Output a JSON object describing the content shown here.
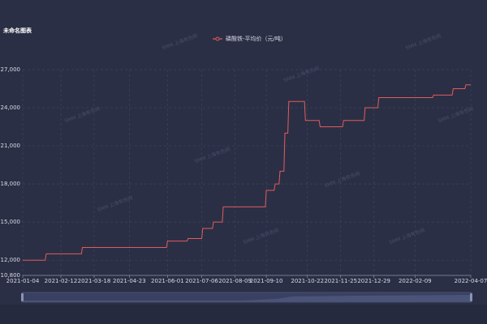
{
  "chart_data": {
    "type": "line",
    "title": "未命名图表",
    "watermark": "SMM 上海有色网",
    "x": [
      "2021-01-04",
      "2021-01-27",
      "2021-01-28",
      "2021-03-05",
      "2021-03-06",
      "2021-05-31",
      "2021-06-01",
      "2021-06-21",
      "2021-06-22",
      "2021-07-06",
      "2021-07-07",
      "2021-07-17",
      "2021-07-18",
      "2021-07-27",
      "2021-07-28",
      "2021-09-09",
      "2021-09-10",
      "2021-09-18",
      "2021-09-19",
      "2021-09-23",
      "2021-09-24",
      "2021-09-28",
      "2021-09-29",
      "2021-10-02",
      "2021-10-03",
      "2021-10-19",
      "2021-10-20",
      "2021-11-03",
      "2021-11-04",
      "2021-11-27",
      "2021-11-28",
      "2021-12-19",
      "2021-12-20",
      "2022-01-02",
      "2022-01-03",
      "2022-02-27",
      "2022-02-28",
      "2022-03-19",
      "2022-03-20",
      "2022-04-01",
      "2022-04-02",
      "2022-04-07"
    ],
    "series": [
      {
        "name": "磷酸铁-平均价（元/吨）",
        "color": "#e05c5c",
        "values": [
          12000,
          12000,
          12500,
          12500,
          13000,
          13000,
          13500,
          13500,
          13700,
          13700,
          14500,
          14500,
          15000,
          15000,
          16200,
          16200,
          17500,
          17500,
          18000,
          18000,
          19000,
          19000,
          22000,
          22000,
          24500,
          24500,
          23000,
          23000,
          22500,
          22500,
          23000,
          23000,
          24000,
          24000,
          24800,
          24800,
          25000,
          25000,
          25500,
          25500,
          25800,
          25800
        ]
      }
    ],
    "xlim": [
      "2021-01-04",
      "2022-04-07"
    ],
    "xticks": [
      "2021-01-04",
      "2021-02-12",
      "2021-03-18",
      "2021-04-23",
      "2021-06-01",
      "2021-07-06",
      "2021-08-09",
      "2021-09-10",
      "2021-10-22",
      "2021-11-25",
      "2021-12-29",
      "2022-02-09",
      "2022-04-07"
    ],
    "ylim": [
      10800,
      27000
    ],
    "yticks": [
      {
        "value": 10800,
        "label": "10,800"
      },
      {
        "value": 12000,
        "label": "12,000"
      },
      {
        "value": 15000,
        "label": "15,000"
      },
      {
        "value": 18000,
        "label": "18,000"
      },
      {
        "value": 21000,
        "label": "21,000"
      },
      {
        "value": 24000,
        "label": "24,000"
      },
      {
        "value": 27000,
        "label": "27,000"
      }
    ],
    "grid": true
  }
}
